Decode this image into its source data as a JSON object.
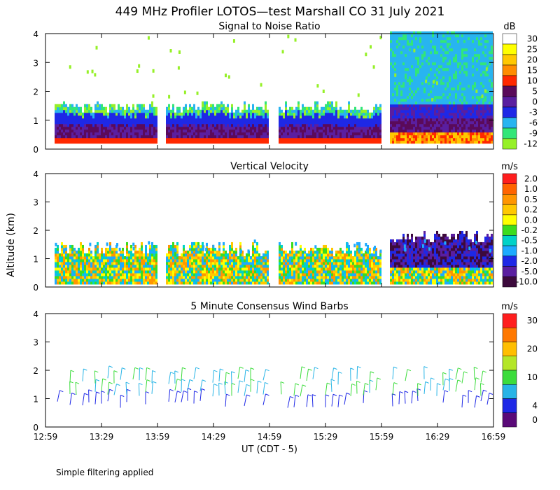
{
  "title": "449 MHz Profiler LOTOS—test Marshall CO 31 July 2021",
  "ylabel": "Altitude (km)",
  "xlabel": "UT  (CDT - 5)",
  "footnote": "Simple filtering applied",
  "chart_data": [
    {
      "type": "heatmap",
      "title": "Signal to Noise Ratio",
      "units": "dB",
      "x_ticks": [
        "12:59",
        "13:29",
        "13:59",
        "14:29",
        "14:59",
        "15:29",
        "15:59",
        "16:29",
        "16:59"
      ],
      "y_ticks": [
        0,
        1,
        2,
        3,
        4
      ],
      "ylim": [
        0,
        4
      ],
      "colorbar": [
        {
          "label": "30",
          "color": "#ffffff"
        },
        {
          "label": "25",
          "color": "#ffff00"
        },
        {
          "label": "20",
          "color": "#ffc800"
        },
        {
          "label": "15",
          "color": "#ff8c00"
        },
        {
          "label": "10",
          "color": "#ff2800"
        },
        {
          "label": "5",
          "color": "#5a0a5a"
        },
        {
          "label": "0",
          "color": "#5a1ea0"
        },
        {
          "label": "-3",
          "color": "#1e28e6"
        },
        {
          "label": "-6",
          "color": "#28b4f0"
        },
        {
          "label": "-9",
          "color": "#32e678"
        },
        {
          "label": "-12",
          "color": "#96f028"
        }
      ]
    },
    {
      "type": "heatmap",
      "title": "Vertical Velocity",
      "units": "m/s",
      "x_ticks": [
        "12:59",
        "13:29",
        "13:59",
        "14:29",
        "14:59",
        "15:29",
        "15:59",
        "16:29",
        "16:59"
      ],
      "y_ticks": [
        0,
        1,
        2,
        3,
        4
      ],
      "ylim": [
        0,
        4
      ],
      "colorbar": [
        {
          "label": "2.0",
          "color": "#ff1e1e"
        },
        {
          "label": "1.0",
          "color": "#ff6400"
        },
        {
          "label": "0.5",
          "color": "#ff9600"
        },
        {
          "label": "0.2",
          "color": "#ffc800"
        },
        {
          "label": "0.0",
          "color": "#ffff00"
        },
        {
          "label": "-0.2",
          "color": "#3cdc1e"
        },
        {
          "label": "-0.5",
          "color": "#00d2c8"
        },
        {
          "label": "-1.0",
          "color": "#1eaaff"
        },
        {
          "label": "-2.0",
          "color": "#1e28e6"
        },
        {
          "label": "-5.0",
          "color": "#5a1ea0"
        },
        {
          "label": "-10.0",
          "color": "#3c0a3c"
        }
      ]
    },
    {
      "type": "barbs",
      "title": "5 Minute Consensus Wind Barbs",
      "units": "m/s",
      "x_ticks": [
        "12:59",
        "13:29",
        "13:59",
        "14:29",
        "14:59",
        "15:29",
        "15:59",
        "16:29",
        "16:59"
      ],
      "y_ticks": [
        0,
        1,
        2,
        3,
        4
      ],
      "ylim": [
        0,
        4
      ],
      "colorbar": [
        {
          "label": "30",
          "color": "#ff1e1e"
        },
        {
          "label": "",
          "color": "#ff7800"
        },
        {
          "label": "20",
          "color": "#ffbe00"
        },
        {
          "label": "",
          "color": "#b4e628"
        },
        {
          "label": "10",
          "color": "#3cdc3c"
        },
        {
          "label": "",
          "color": "#28b4e6"
        },
        {
          "label": "4",
          "color": "#1e28e6"
        },
        {
          "label": "0",
          "color": "#5a0a78"
        }
      ]
    }
  ]
}
